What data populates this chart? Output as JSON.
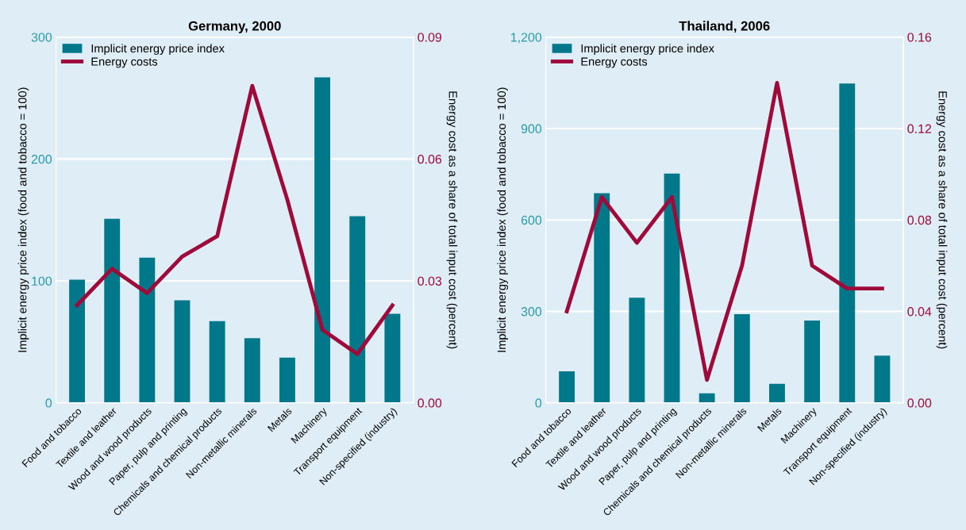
{
  "chart_data": [
    {
      "type": "bar",
      "title": "Germany, 2000",
      "ylabel": "Implicit energy price index (food and tobacco = 100)",
      "y2label": "Energy cost as a share of total input cost (percent)",
      "categories": [
        "Food and tobacco",
        "Textile and leather",
        "Wood and wood products",
        "Paper, pulp and printing",
        "Chemicals and chemical products",
        "Non-metallic minerals",
        "Metals",
        "Machinery",
        "Transport equipment",
        "Non-specified (industry)"
      ],
      "series": [
        {
          "name": "Implicit energy price index",
          "color": "#00788a",
          "values": [
            101,
            151,
            119,
            84,
            67,
            53,
            37,
            267,
            153,
            73
          ]
        },
        {
          "name": "Energy costs",
          "type": "line",
          "axis": "y2",
          "color": "#9e0a3a",
          "values": [
            0.024,
            0.033,
            0.027,
            0.036,
            0.041,
            0.078,
            0.05,
            0.018,
            0.012,
            0.024
          ]
        }
      ],
      "ylim": [
        0,
        300
      ],
      "yticks": [
        0,
        100,
        200,
        300
      ],
      "y2lim": [
        0,
        0.09
      ],
      "y2ticks": [
        {
          "value": 0,
          "label": "0.00"
        },
        0.03,
        0.06,
        0.09
      ],
      "grid": "y",
      "legend": "top left",
      "marker": "none",
      "line_style": "solid"
    },
    {
      "type": "bar",
      "title": "Thailand, 2006",
      "ylabel": "Implicit energy price index (food and tobacco = 100)",
      "y2label": "Energy cost as a share of total input cost (percent)",
      "categories": [
        "Food and tobacco",
        "Textile and leather",
        "Wood and wood products",
        "Paper, pulp and printing",
        "Chemicals and chemical products",
        "Non-metallic minerals",
        "Metals",
        "Machinery",
        "Transport equipment",
        "Non-specified (industry)"
      ],
      "series": [
        {
          "name": "Implicit energy price index",
          "color": "#00788a",
          "values": [
            103,
            688,
            345,
            752,
            31,
            291,
            62,
            270,
            1048,
            155
          ]
        },
        {
          "name": "Energy costs",
          "type": "line",
          "axis": "y2",
          "color": "#9e0a3a",
          "values": [
            0.04,
            0.09,
            0.07,
            0.09,
            0.01,
            0.06,
            0.14,
            0.06,
            0.05,
            0.05
          ]
        }
      ],
      "ylim": [
        0,
        1200
      ],
      "yticks": [
        0,
        300,
        600,
        900,
        {
          "value": 1200,
          "label": "1,200"
        }
      ],
      "y2lim": [
        0,
        0.16
      ],
      "y2ticks": [
        {
          "value": 0,
          "label": "0.00"
        },
        0.04,
        0.08,
        0.12,
        0.16
      ],
      "grid": "y",
      "legend": "top left",
      "marker": "none",
      "line_style": "solid"
    }
  ]
}
